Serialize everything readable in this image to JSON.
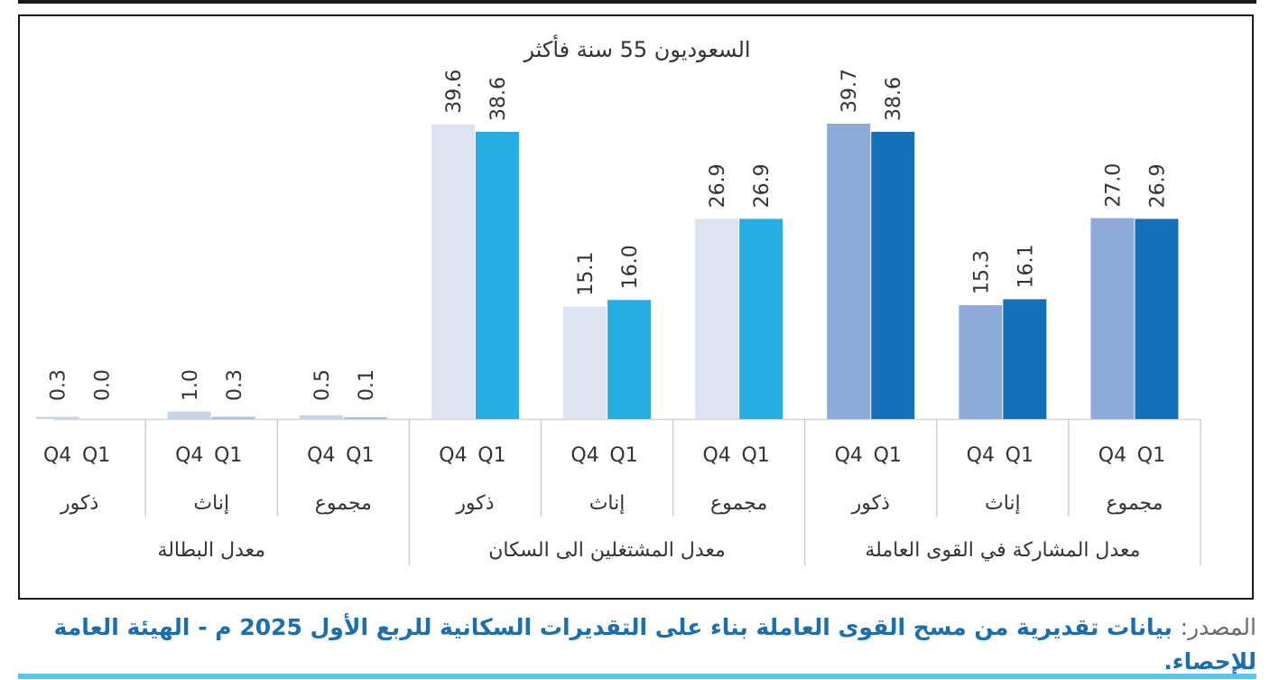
{
  "chart_data": {
    "type": "bar",
    "title": "السعوديون 55 سنة فأكثر",
    "periods": [
      "Q4",
      "Q1"
    ],
    "groups": [
      {
        "label": "معدل المشاركة في القوى العاملة",
        "color_q4": "#8eaad8",
        "color_q1": "#1470b8",
        "categories": [
          {
            "label": "مجموع",
            "q4": 27.0,
            "q1": 26.9,
            "q4_label": "27.0",
            "q1_label": "26.9"
          },
          {
            "label": "إناث",
            "q4": 15.3,
            "q1": 16.1,
            "q4_label": "15.3",
            "q1_label": "16.1"
          },
          {
            "label": "ذكور",
            "q4": 39.7,
            "q1": 38.6,
            "q4_label": "39.7",
            "q1_label": "38.6"
          }
        ]
      },
      {
        "label": "معدل المشتغلين الى السكان",
        "color_q4": "#dde3f0",
        "color_q1": "#26aee2",
        "categories": [
          {
            "label": "مجموع",
            "q4": 26.9,
            "q1": 26.9,
            "q4_label": "26.9",
            "q1_label": "26.9"
          },
          {
            "label": "إناث",
            "q4": 15.1,
            "q1": 16.0,
            "q4_label": "15.1",
            "q1_label": "16.0"
          },
          {
            "label": "ذكور",
            "q4": 39.6,
            "q1": 38.6,
            "q4_label": "39.6",
            "q1_label": "38.6"
          }
        ]
      },
      {
        "label": "معدل البطالة",
        "color_q4": "#c6d4ea",
        "color_q1": "#a9c2e2",
        "categories": [
          {
            "label": "مجموع",
            "q4": 0.5,
            "q1": 0.1,
            "q4_label": "0.5",
            "q1_label": "0.1"
          },
          {
            "label": "إناث",
            "q4": 1.0,
            "q1": 0.3,
            "q4_label": "1.0",
            "q1_label": "0.3"
          },
          {
            "label": "ذكور",
            "q4": 0.3,
            "q1": 0.0,
            "q4_label": "0.3",
            "q1_label": "0.0"
          }
        ]
      }
    ],
    "ylim": [
      0,
      42
    ],
    "grid": false,
    "legend": "none"
  },
  "source": {
    "label": "المصدر:",
    "text": "بيانات تقديرية من مسح القوى العاملة بناء على التقديرات السكانية للربع الأول 2025 م - الهيئة العامة للإحصاء."
  }
}
